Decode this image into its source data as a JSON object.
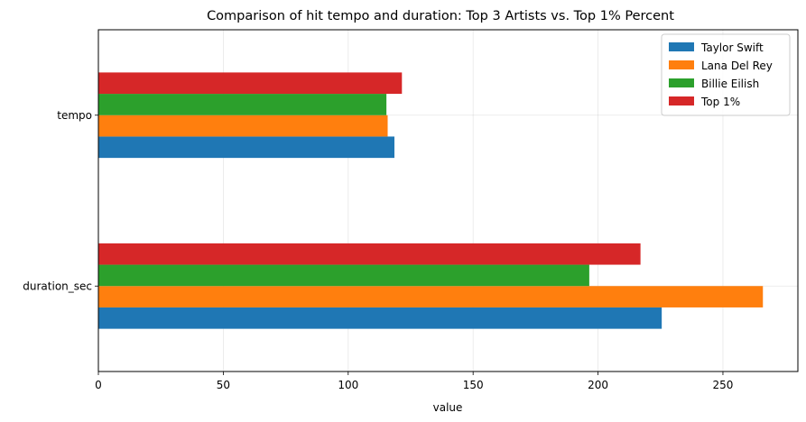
{
  "chart_data": {
    "type": "bar",
    "orientation": "horizontal",
    "title": "Comparison of hit tempo and duration: Top 3 Artists vs. Top 1% Percent",
    "xlabel": "value",
    "ylabel": "",
    "categories": [
      "duration_sec",
      "tempo"
    ],
    "series": [
      {
        "name": "Taylor Swift",
        "color": "#1f77b4",
        "values": [
          225.5,
          118.5
        ]
      },
      {
        "name": "Lana Del Rey",
        "color": "#ff7f0e",
        "values": [
          266.0,
          115.8
        ]
      },
      {
        "name": "Billie Eilish",
        "color": "#2ca02c",
        "values": [
          196.5,
          115.3
        ]
      },
      {
        "name": "Top 1%",
        "color": "#d62728",
        "values": [
          217.0,
          121.5
        ]
      }
    ],
    "xlim": [
      0,
      280
    ],
    "xticks": [
      0,
      50,
      100,
      150,
      200,
      250
    ],
    "grid": true,
    "legend_position": "top-right"
  }
}
